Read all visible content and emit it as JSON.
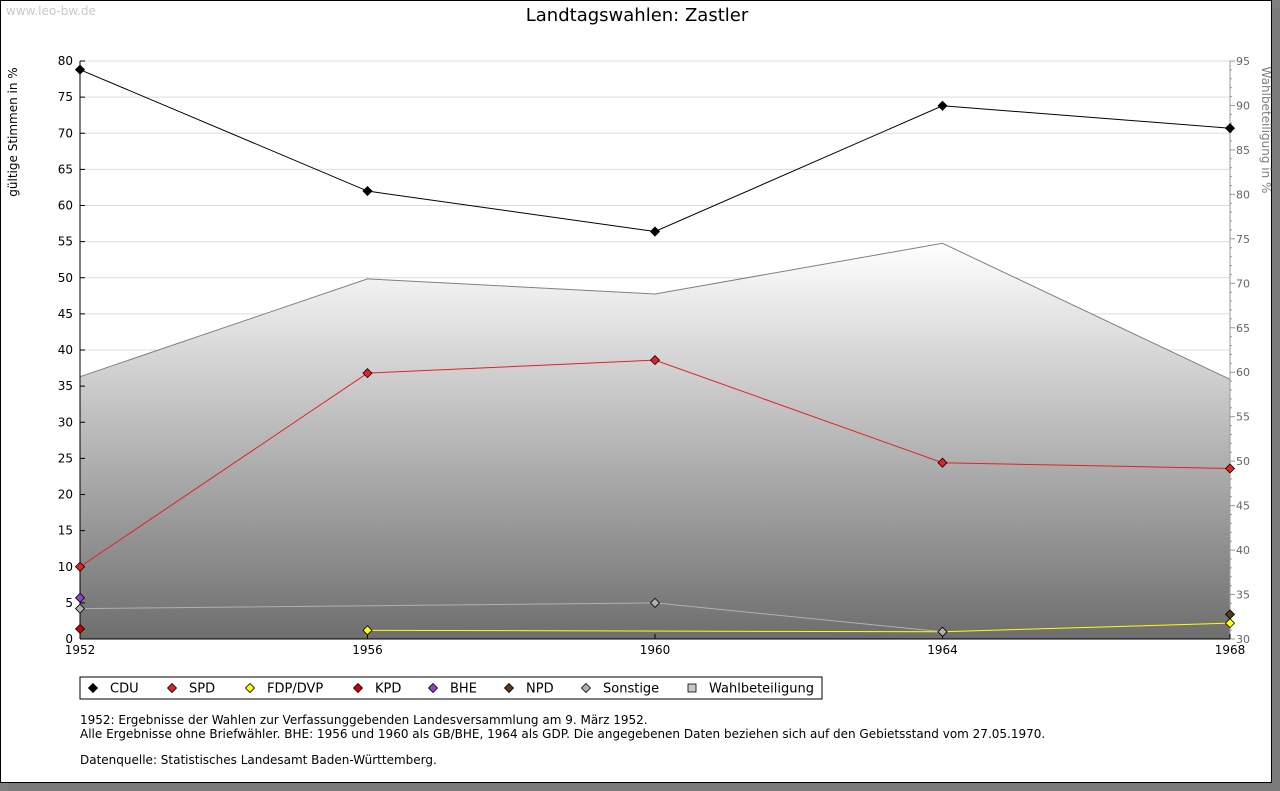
{
  "watermark": "www.leo-bw.de",
  "chart_data": {
    "type": "line",
    "title": "Landtagswahlen: Zastler",
    "ylabel": "gültige Stimmen in %",
    "y2label": "Wahlbeteiligung in %",
    "categories": [
      "1952",
      "1956",
      "1960",
      "1964",
      "1968"
    ],
    "ylim": [
      0,
      80
    ],
    "yticks": [
      "0",
      "5",
      "10",
      "15",
      "20",
      "25",
      "30",
      "35",
      "40",
      "45",
      "50",
      "55",
      "60",
      "65",
      "70",
      "75",
      "80"
    ],
    "y2lim": [
      30,
      95
    ],
    "y2ticks": [
      "30",
      "35",
      "40",
      "45",
      "50",
      "55",
      "60",
      "65",
      "70",
      "75",
      "80",
      "85",
      "90",
      "95"
    ],
    "turnout": {
      "name": "Wahlbeteiligung",
      "values": [
        59.5,
        70.5,
        68.8,
        74.5,
        59.2
      ],
      "color": "#808080"
    },
    "series": [
      {
        "name": "CDU",
        "color": "#000000",
        "values": [
          78.8,
          62.0,
          56.4,
          73.8,
          70.7
        ]
      },
      {
        "name": "SPD",
        "color": "#e32222",
        "values": [
          10.0,
          36.8,
          38.6,
          24.4,
          23.6
        ]
      },
      {
        "name": "FDP/DVP",
        "color": "#ffff00",
        "values": [
          null,
          1.2,
          null,
          1.0,
          2.2
        ]
      },
      {
        "name": "KPD",
        "color": "#cc0000",
        "values": [
          1.4,
          null,
          null,
          null,
          null
        ]
      },
      {
        "name": "BHE",
        "color": "#8e44c8",
        "values": [
          5.7,
          null,
          null,
          null,
          null
        ]
      },
      {
        "name": "NPD",
        "color": "#5a3a1e",
        "values": [
          null,
          null,
          null,
          null,
          3.4
        ]
      },
      {
        "name": "Sonstige",
        "color": "#b0b0b0",
        "values": [
          4.2,
          null,
          5.0,
          1.0,
          null
        ]
      }
    ],
    "legend": [
      "CDU",
      "SPD",
      "FDP/DVP",
      "KPD",
      "BHE",
      "NPD",
      "Sonstige",
      "Wahlbeteiligung"
    ]
  },
  "notes": {
    "line1": "1952: Ergebnisse der Wahlen zur Verfassunggebenden Landesversammlung am 9. März 1952.",
    "line2": "Alle Ergebnisse ohne Briefwähler. BHE: 1956 und 1960 als GB/BHE, 1964 als GDP. Die angegebenen Daten beziehen sich auf den Gebietsstand vom 27.05.1970.",
    "source": "Datenquelle: Statistisches Landesamt Baden-Württemberg."
  }
}
